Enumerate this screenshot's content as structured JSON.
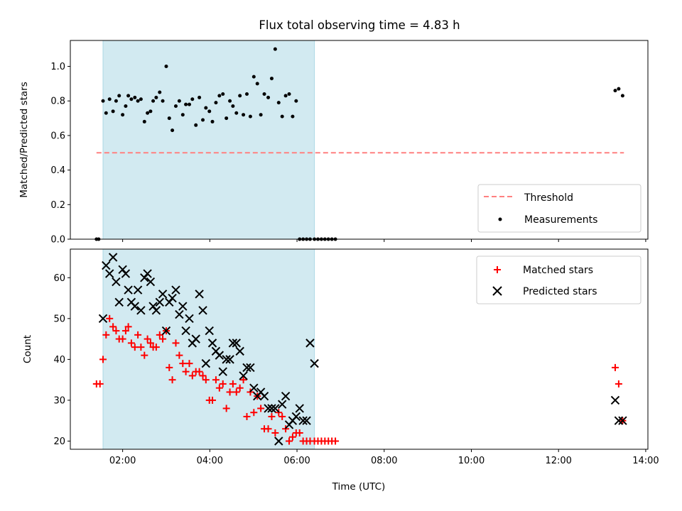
{
  "title": "Flux total observing time = 4.83 h",
  "colors": {
    "shade": "#add8e6",
    "threshold": "#ff8080",
    "measurements": "#000000",
    "matched": "#ff0000",
    "predicted": "#000000"
  },
  "chart_data": [
    {
      "type": "scatter",
      "ylabel": "Matched/Predicted stars",
      "xlabel": "",
      "xlim": [
        0.8,
        14.05
      ],
      "ylim": [
        0.0,
        1.15
      ],
      "xticks": [
        2,
        4,
        6,
        8,
        10,
        12,
        14
      ],
      "xtick_labels_visible": false,
      "yticks": [
        0.0,
        0.2,
        0.4,
        0.6,
        0.8,
        1.0
      ],
      "ytick_labels": [
        "0.0",
        "0.2",
        "0.4",
        "0.6",
        "0.8",
        "1.0"
      ],
      "shaded_span": [
        1.55,
        6.4
      ],
      "legend": {
        "position": "lower right",
        "entries": [
          "Threshold",
          "Measurements"
        ]
      },
      "threshold": {
        "name": "Threshold",
        "y": 0.5,
        "x_range": [
          1.4,
          13.5
        ],
        "style": "dashed"
      },
      "series": [
        {
          "name": "Measurements",
          "marker": "dot",
          "x": [
            1.4,
            1.45,
            1.55,
            1.62,
            1.7,
            1.78,
            1.85,
            1.92,
            2.0,
            2.07,
            2.13,
            2.2,
            2.28,
            2.35,
            2.42,
            2.5,
            2.57,
            2.64,
            2.7,
            2.77,
            2.85,
            2.92,
            3.0,
            3.07,
            3.14,
            3.22,
            3.3,
            3.38,
            3.45,
            3.53,
            3.6,
            3.68,
            3.76,
            3.84,
            3.91,
            3.99,
            4.06,
            4.14,
            4.22,
            4.3,
            4.38,
            4.46,
            4.53,
            4.61,
            4.69,
            4.77,
            4.85,
            4.93,
            5.01,
            5.09,
            5.17,
            5.25,
            5.34,
            5.42,
            5.5,
            5.58,
            5.66,
            5.74,
            5.82,
            5.9,
            5.98,
            6.06,
            6.14,
            6.22,
            6.3,
            6.4,
            6.48,
            6.56,
            6.64,
            6.72,
            6.8,
            6.88,
            13.3,
            13.38,
            13.47
          ],
          "y": [
            0.0,
            0.0,
            0.8,
            0.73,
            0.81,
            0.74,
            0.8,
            0.83,
            0.72,
            0.77,
            0.83,
            0.81,
            0.82,
            0.8,
            0.81,
            0.68,
            0.73,
            0.74,
            0.8,
            0.82,
            0.85,
            0.8,
            1.0,
            0.7,
            0.63,
            0.77,
            0.8,
            0.72,
            0.78,
            0.78,
            0.81,
            0.66,
            0.82,
            0.69,
            0.76,
            0.74,
            0.68,
            0.79,
            0.83,
            0.84,
            0.7,
            0.8,
            0.77,
            0.73,
            0.83,
            0.72,
            0.84,
            0.71,
            0.94,
            0.9,
            0.72,
            0.84,
            0.82,
            0.93,
            1.1,
            0.79,
            0.71,
            0.83,
            0.84,
            0.71,
            0.8,
            0.0,
            0.0,
            0.0,
            0.0,
            0.0,
            0.0,
            0.0,
            0.0,
            0.0,
            0.0,
            0.0,
            0.86,
            0.87,
            0.83
          ]
        }
      ]
    },
    {
      "type": "scatter",
      "ylabel": "Count",
      "xlabel": "Time (UTC)",
      "xlim": [
        0.8,
        14.05
      ],
      "ylim": [
        18,
        67
      ],
      "xticks": [
        2,
        4,
        6,
        8,
        10,
        12,
        14
      ],
      "xtick_labels": [
        "02:00",
        "04:00",
        "06:00",
        "08:00",
        "10:00",
        "12:00",
        "14:00"
      ],
      "yticks": [
        20,
        30,
        40,
        50,
        60
      ],
      "ytick_labels": [
        "20",
        "30",
        "40",
        "50",
        "60"
      ],
      "shaded_span": [
        1.55,
        6.4
      ],
      "legend": {
        "position": "upper right",
        "entries": [
          "Matched stars",
          "Predicted stars"
        ]
      },
      "series": [
        {
          "name": "Matched stars",
          "marker": "plus",
          "x": [
            1.4,
            1.48,
            1.55,
            1.62,
            1.7,
            1.78,
            1.85,
            1.92,
            2.0,
            2.07,
            2.13,
            2.2,
            2.28,
            2.35,
            2.42,
            2.5,
            2.57,
            2.64,
            2.7,
            2.77,
            2.85,
            2.92,
            3.0,
            3.07,
            3.14,
            3.22,
            3.3,
            3.38,
            3.45,
            3.53,
            3.6,
            3.68,
            3.76,
            3.84,
            3.91,
            3.99,
            4.06,
            4.14,
            4.22,
            4.3,
            4.38,
            4.46,
            4.53,
            4.61,
            4.69,
            4.77,
            4.85,
            4.93,
            5.01,
            5.09,
            5.17,
            5.25,
            5.34,
            5.42,
            5.5,
            5.58,
            5.66,
            5.74,
            5.82,
            5.9,
            5.98,
            6.06,
            6.14,
            6.22,
            6.3,
            6.4,
            6.48,
            6.56,
            6.64,
            6.72,
            6.8,
            6.88,
            13.3,
            13.38,
            13.47
          ],
          "y": [
            34,
            34,
            40,
            46,
            50,
            48,
            47,
            45,
            45,
            47,
            48,
            44,
            43,
            46,
            43,
            41,
            45,
            44,
            43,
            43,
            46,
            45,
            47,
            38,
            35,
            44,
            41,
            39,
            37,
            39,
            36,
            37,
            37,
            36,
            35,
            30,
            30,
            35,
            33,
            34,
            28,
            32,
            34,
            32,
            33,
            35,
            26,
            32,
            27,
            31,
            28,
            23,
            23,
            26,
            22,
            27,
            26,
            23,
            20,
            21,
            22,
            22,
            20,
            20,
            20,
            20,
            20,
            20,
            20,
            20,
            20,
            20,
            38,
            34,
            25
          ]
        },
        {
          "name": "Predicted stars",
          "marker": "x",
          "x": [
            1.55,
            1.62,
            1.7,
            1.78,
            1.85,
            1.92,
            2.0,
            2.07,
            2.13,
            2.2,
            2.28,
            2.35,
            2.42,
            2.5,
            2.57,
            2.64,
            2.7,
            2.77,
            2.85,
            2.92,
            3.0,
            3.07,
            3.14,
            3.22,
            3.3,
            3.38,
            3.45,
            3.53,
            3.6,
            3.68,
            3.76,
            3.84,
            3.91,
            3.99,
            4.06,
            4.14,
            4.22,
            4.3,
            4.38,
            4.46,
            4.53,
            4.61,
            4.69,
            4.77,
            4.85,
            4.93,
            5.01,
            5.09,
            5.17,
            5.25,
            5.34,
            5.42,
            5.5,
            5.58,
            5.66,
            5.74,
            5.82,
            5.9,
            5.98,
            6.06,
            6.14,
            6.22,
            6.3,
            6.4,
            13.3,
            13.38,
            13.47
          ],
          "y": [
            50,
            63,
            61,
            65,
            59,
            54,
            62,
            61,
            57,
            54,
            53,
            57,
            52,
            60,
            61,
            59,
            53,
            52,
            54,
            56,
            47,
            54,
            55,
            57,
            51,
            53,
            47,
            50,
            44,
            45,
            56,
            52,
            39,
            47,
            44,
            42,
            41,
            37,
            40,
            40,
            44,
            44,
            42,
            36,
            38,
            38,
            33,
            31,
            32,
            31,
            28,
            28,
            28,
            20,
            29,
            31,
            24,
            25,
            26,
            28,
            25,
            25,
            44,
            39,
            30,
            25,
            25
          ]
        }
      ]
    }
  ]
}
